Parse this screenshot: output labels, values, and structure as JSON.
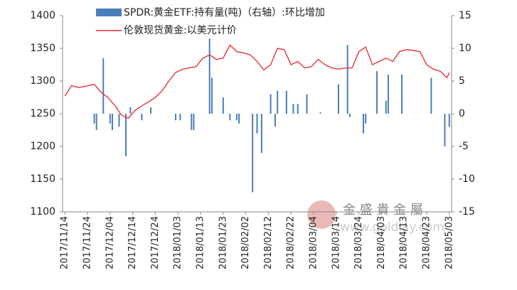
{
  "chart_data": {
    "type": "combo",
    "xlim": [
      "2017/11/13",
      "2018/05/04"
    ],
    "xticks": [
      "2017/11/14",
      "2017/11/24",
      "2017/12/04",
      "2017/12/14",
      "2017/12/24",
      "2018/01/03",
      "2018/01/13",
      "2018/01/23",
      "2018/02/02",
      "2018/02/12",
      "2018/02/22",
      "2018/03/04",
      "2018/03/14",
      "2018/03/24",
      "2018/04/03",
      "2018/04/13",
      "2018/04/23",
      "2018/05/03"
    ],
    "ylim": [
      1100,
      1400
    ],
    "yticks": [
      1100,
      1150,
      1200,
      1250,
      1300,
      1350,
      1400
    ],
    "y2lim": [
      -15,
      15
    ],
    "y2ticks": [
      -15,
      -10,
      -5,
      0,
      5,
      10,
      15
    ],
    "grid": false,
    "watermark": [
      "金 盛 貴 金 屬",
      "www.goldlay.com"
    ],
    "series": [
      {
        "name": "SPDR:黄金ETF:持有量(吨)（右轴）:环比增加",
        "type": "bar",
        "axis": "y2",
        "color": "#4a7ebb",
        "x": [
          "2017/11/27",
          "2017/11/28",
          "2017/12/01",
          "2017/12/04",
          "2017/12/05",
          "2017/12/08",
          "2017/12/11",
          "2017/12/13",
          "2017/12/18",
          "2017/12/22",
          "2018/01/02",
          "2018/01/04",
          "2018/01/09",
          "2018/01/10",
          "2018/01/17",
          "2018/01/18",
          "2018/01/23",
          "2018/01/26",
          "2018/01/29",
          "2018/01/30",
          "2018/02/05",
          "2018/02/07",
          "2018/02/09",
          "2018/02/13",
          "2018/02/15",
          "2018/02/16",
          "2018/02/20",
          "2018/02/23",
          "2018/02/25",
          "2018/03/01",
          "2018/03/07",
          "2018/03/15",
          "2018/03/19",
          "2018/03/20",
          "2018/03/26",
          "2018/03/27",
          "2018/04/01",
          "2018/04/05",
          "2018/04/06",
          "2018/04/12",
          "2018/04/25",
          "2018/05/01",
          "2018/05/03"
        ],
        "values": [
          -1.5,
          -2.5,
          8.5,
          -1.5,
          -2.5,
          -2,
          -6.5,
          1,
          -1,
          1,
          -1,
          -1,
          -2.5,
          -2.5,
          11.5,
          5.5,
          2.5,
          -1,
          -1,
          -1.5,
          -12,
          -3,
          -6,
          3,
          -2,
          3.5,
          3.5,
          1.5,
          1.5,
          3,
          0.2,
          4.5,
          10.5,
          -0.5,
          -3,
          -1.5,
          6.5,
          2,
          6,
          6,
          5.5,
          -5,
          -2
        ]
      },
      {
        "name": "伦敦现货黄金:以美元计价",
        "type": "line",
        "axis": "y",
        "color": "#e8262b",
        "x": [
          "2017/11/14",
          "2017/11/17",
          "2017/11/20",
          "2017/11/23",
          "2017/11/27",
          "2017/11/30",
          "2017/12/03",
          "2017/12/06",
          "2017/12/09",
          "2017/12/12",
          "2017/12/15",
          "2017/12/18",
          "2017/12/21",
          "2017/12/24",
          "2017/12/27",
          "2017/12/30",
          "2018/01/02",
          "2018/01/05",
          "2018/01/08",
          "2018/01/11",
          "2018/01/14",
          "2018/01/17",
          "2018/01/20",
          "2018/01/23",
          "2018/01/26",
          "2018/01/29",
          "2018/02/01",
          "2018/02/04",
          "2018/02/07",
          "2018/02/10",
          "2018/02/13",
          "2018/02/16",
          "2018/02/19",
          "2018/02/22",
          "2018/02/25",
          "2018/02/28",
          "2018/03/03",
          "2018/03/06",
          "2018/03/09",
          "2018/03/12",
          "2018/03/15",
          "2018/03/18",
          "2018/03/21",
          "2018/03/24",
          "2018/03/27",
          "2018/03/30",
          "2018/04/02",
          "2018/04/05",
          "2018/04/08",
          "2018/04/11",
          "2018/04/14",
          "2018/04/17",
          "2018/04/20",
          "2018/04/23",
          "2018/04/26",
          "2018/04/29",
          "2018/05/02",
          "2018/05/03"
        ],
        "values": [
          1277,
          1293,
          1290,
          1292,
          1295,
          1283,
          1275,
          1263,
          1248,
          1243,
          1255,
          1262,
          1268,
          1275,
          1285,
          1300,
          1313,
          1318,
          1320,
          1322,
          1335,
          1340,
          1333,
          1335,
          1355,
          1345,
          1343,
          1340,
          1330,
          1317,
          1325,
          1350,
          1348,
          1325,
          1330,
          1320,
          1322,
          1333,
          1325,
          1320,
          1318,
          1320,
          1320,
          1345,
          1352,
          1325,
          1330,
          1335,
          1330,
          1345,
          1348,
          1347,
          1345,
          1325,
          1318,
          1315,
          1305,
          1313
        ]
      }
    ]
  }
}
